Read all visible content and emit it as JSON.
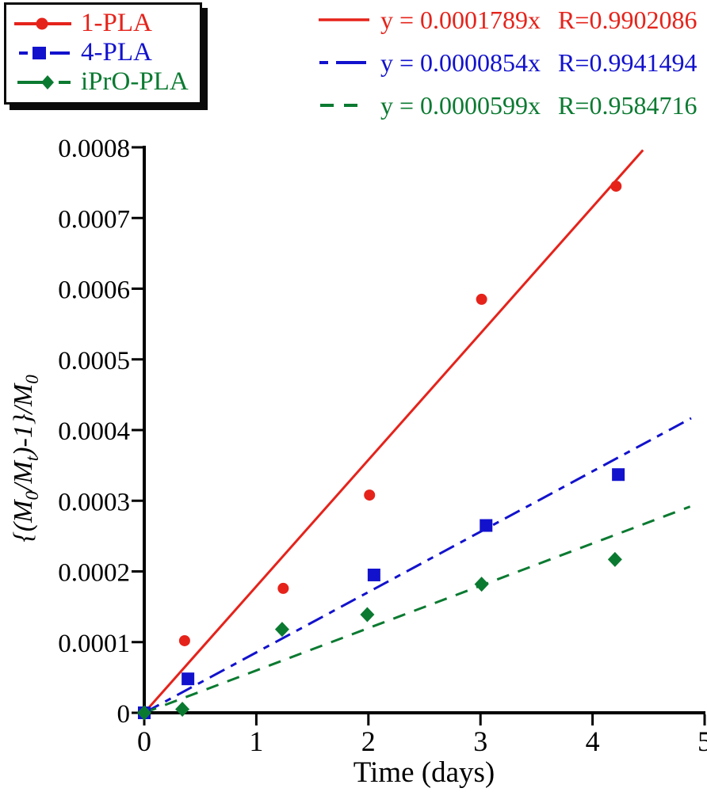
{
  "equations": [
    {
      "formula": "y = 0.0001789x",
      "correlation": "R=0.9902086"
    },
    {
      "formula": "y = 0.0000854x",
      "correlation": "R=0.9941494"
    },
    {
      "formula": "y = 0.0000599x",
      "correlation": "R=0.9584716"
    }
  ],
  "chart_data": {
    "type": "scatter",
    "title": "",
    "xlabel": "Time (days)",
    "ylabel": "{(M0/Mt)-1}/M0",
    "ylabel_parts": [
      {
        "v": "{(",
        "style": "plain"
      },
      {
        "v": "M",
        "style": "italic"
      },
      {
        "v": "0",
        "style": "sub"
      },
      {
        "v": "/",
        "style": "plain"
      },
      {
        "v": "M",
        "style": "italic"
      },
      {
        "v": "t",
        "style": "sub"
      },
      {
        "v": ")-1}/",
        "style": "plain"
      },
      {
        "v": "M",
        "style": "italic"
      },
      {
        "v": "0",
        "style": "sub"
      }
    ],
    "xlim": [
      0,
      5
    ],
    "ylim": [
      0,
      0.0008
    ],
    "x_ticks": [
      0,
      1,
      2,
      3,
      4,
      5
    ],
    "x_tick_labels": [
      "0",
      "1",
      "2",
      "3",
      "4",
      "5"
    ],
    "y_ticks": [
      0,
      0.0001,
      0.0002,
      0.0003,
      0.0004,
      0.0005,
      0.0006,
      0.0007,
      0.0008
    ],
    "y_tick_labels": [
      "0",
      "0.0001",
      "0.0002",
      "0.0003",
      "0.0004",
      "0.0005",
      "0.0006",
      "0.0007",
      "0.0008"
    ],
    "grid": false,
    "legend_position": "top-left",
    "series": [
      {
        "name": "1-PLA",
        "color": "#e5231b",
        "marker": "circle",
        "line_style": "solid",
        "fit_slope": 0.0001789,
        "fit_r": 0.9902086,
        "fit_x_range": [
          0,
          4.45
        ],
        "points": [
          [
            0,
            0
          ],
          [
            0.36,
            0.000102
          ],
          [
            1.24,
            0.000176
          ],
          [
            2.01,
            0.000308
          ],
          [
            3.01,
            0.000585
          ],
          [
            4.21,
            0.000745
          ]
        ]
      },
      {
        "name": "4-PLA",
        "color": "#1212cd",
        "marker": "square",
        "line_style": "long-dash",
        "fit_slope": 8.54e-05,
        "fit_r": 0.9941494,
        "fit_x_range": [
          0,
          4.88
        ],
        "points": [
          [
            0,
            0
          ],
          [
            0.39,
            4.8e-05
          ],
          [
            2.05,
            0.000195
          ],
          [
            3.05,
            0.000265
          ],
          [
            4.23,
            0.000337
          ]
        ]
      },
      {
        "name": "iPrO-PLA",
        "color": "#0b7a31",
        "marker": "diamond",
        "line_style": "dash",
        "fit_slope": 5.99e-05,
        "fit_r": 0.9584716,
        "fit_x_range": [
          0,
          4.87
        ],
        "points": [
          [
            0,
            0
          ],
          [
            0.34,
            5e-06
          ],
          [
            1.23,
            0.000118
          ],
          [
            1.99,
            0.000139
          ],
          [
            3.01,
            0.000182
          ],
          [
            4.2,
            0.000217
          ]
        ]
      }
    ]
  }
}
